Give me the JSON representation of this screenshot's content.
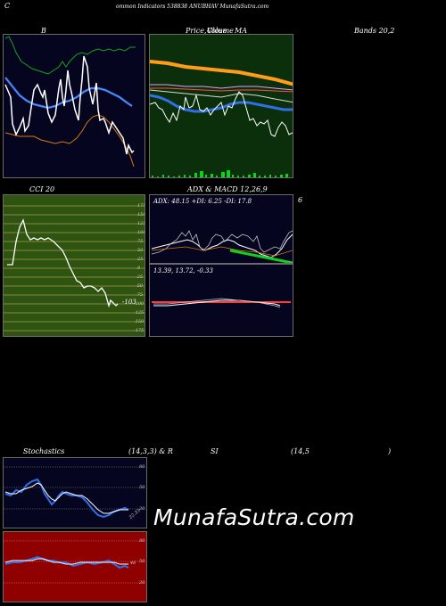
{
  "header": {
    "title_left": "C",
    "title_main": "ommon  Indicators 538838 ANUBHAV MunafaSutra.com"
  },
  "panels": {
    "bollinger": {
      "title": "B"
    },
    "price": {
      "title_a": "Price,",
      "title_b": "Volume",
      "title_c": "MA",
      "title_overlay": "Close"
    },
    "bands_label": "Bands 20,2",
    "cci": {
      "title": "CCI 20",
      "value_label": "-103",
      "ticks": [
        "175",
        "150",
        "125",
        "100",
        "75",
        "50",
        "25",
        "0",
        "-25",
        "-50",
        "-75",
        "-100",
        "-125",
        "-150",
        "-175"
      ]
    },
    "adx": {
      "title": "ADX  & MACD 12,26,9",
      "title_suffix": "6",
      "stats": "ADX: 48.15  +DI: 6.25  -DI: 17.8"
    },
    "macd": {
      "stats": "13.39,  13.72,  -0.33"
    },
    "stoch": {
      "title_a": "Stochastics",
      "title_b": "(14,3,3) & R",
      "title_c": "SI",
      "title_d": "(14,5",
      "title_e": ")",
      "ticks": [
        "80",
        "50",
        "20"
      ],
      "value_label": "22.33"
    },
    "rsi": {
      "ticks": [
        "80",
        "50",
        "20"
      ],
      "value_label": "46"
    }
  },
  "watermark": "MunafaSutra.com",
  "colors": {
    "panel_dark_blue": "#050520",
    "panel_green": "#0b2f0b",
    "panel_olive": "#2f5310",
    "panel_red": "#8f0000",
    "orange": "#ff9c1a",
    "blue": "#2f6fe8",
    "bright_green": "#11d11f"
  }
}
